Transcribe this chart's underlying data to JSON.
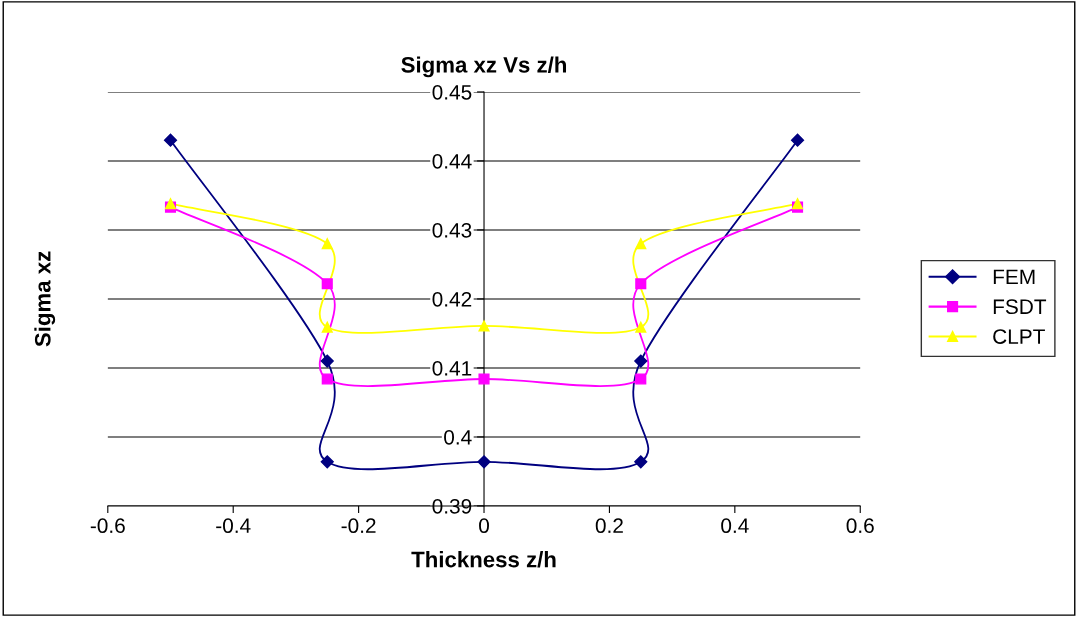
{
  "chart_data": {
    "type": "line",
    "title": "Sigma xz Vs z/h",
    "xlabel": "Thickness z/h",
    "ylabel": "Sigma xz",
    "series": [
      {
        "name": "FEM",
        "color": "#000080",
        "marker": "diamond",
        "x": [
          -0.5,
          -0.25,
          -0.25,
          0,
          0.25,
          0.25,
          0.5
        ],
        "values": [
          0.443,
          0.411,
          0.3964,
          0.3964,
          0.3964,
          0.411,
          0.443
        ]
      },
      {
        "name": "FSDT",
        "color": "#ff00ff",
        "marker": "square",
        "x": [
          -0.5,
          -0.25,
          -0.25,
          0,
          0.25,
          0.25,
          0.5
        ],
        "values": [
          0.4333,
          0.4222,
          0.4084,
          0.4084,
          0.4084,
          0.4222,
          0.4333
        ]
      },
      {
        "name": "CLPT",
        "color": "#ffff00",
        "marker": "triangle",
        "x": [
          -0.5,
          -0.25,
          -0.25,
          0,
          0.25,
          0.25,
          0.5
        ],
        "values": [
          0.4338,
          0.428,
          0.4159,
          0.4161,
          0.4159,
          0.428,
          0.4338
        ]
      }
    ],
    "xlim": [
      -0.6,
      0.6
    ],
    "xticks": [
      -0.6,
      -0.4,
      -0.2,
      0,
      0.2,
      0.4,
      0.6
    ],
    "ylim": [
      0.39,
      0.45
    ],
    "yticks": [
      0.39,
      0.4,
      0.41,
      0.42,
      0.43,
      0.44,
      0.45
    ],
    "grid": "y",
    "legend": "right",
    "line_style": "solid"
  }
}
